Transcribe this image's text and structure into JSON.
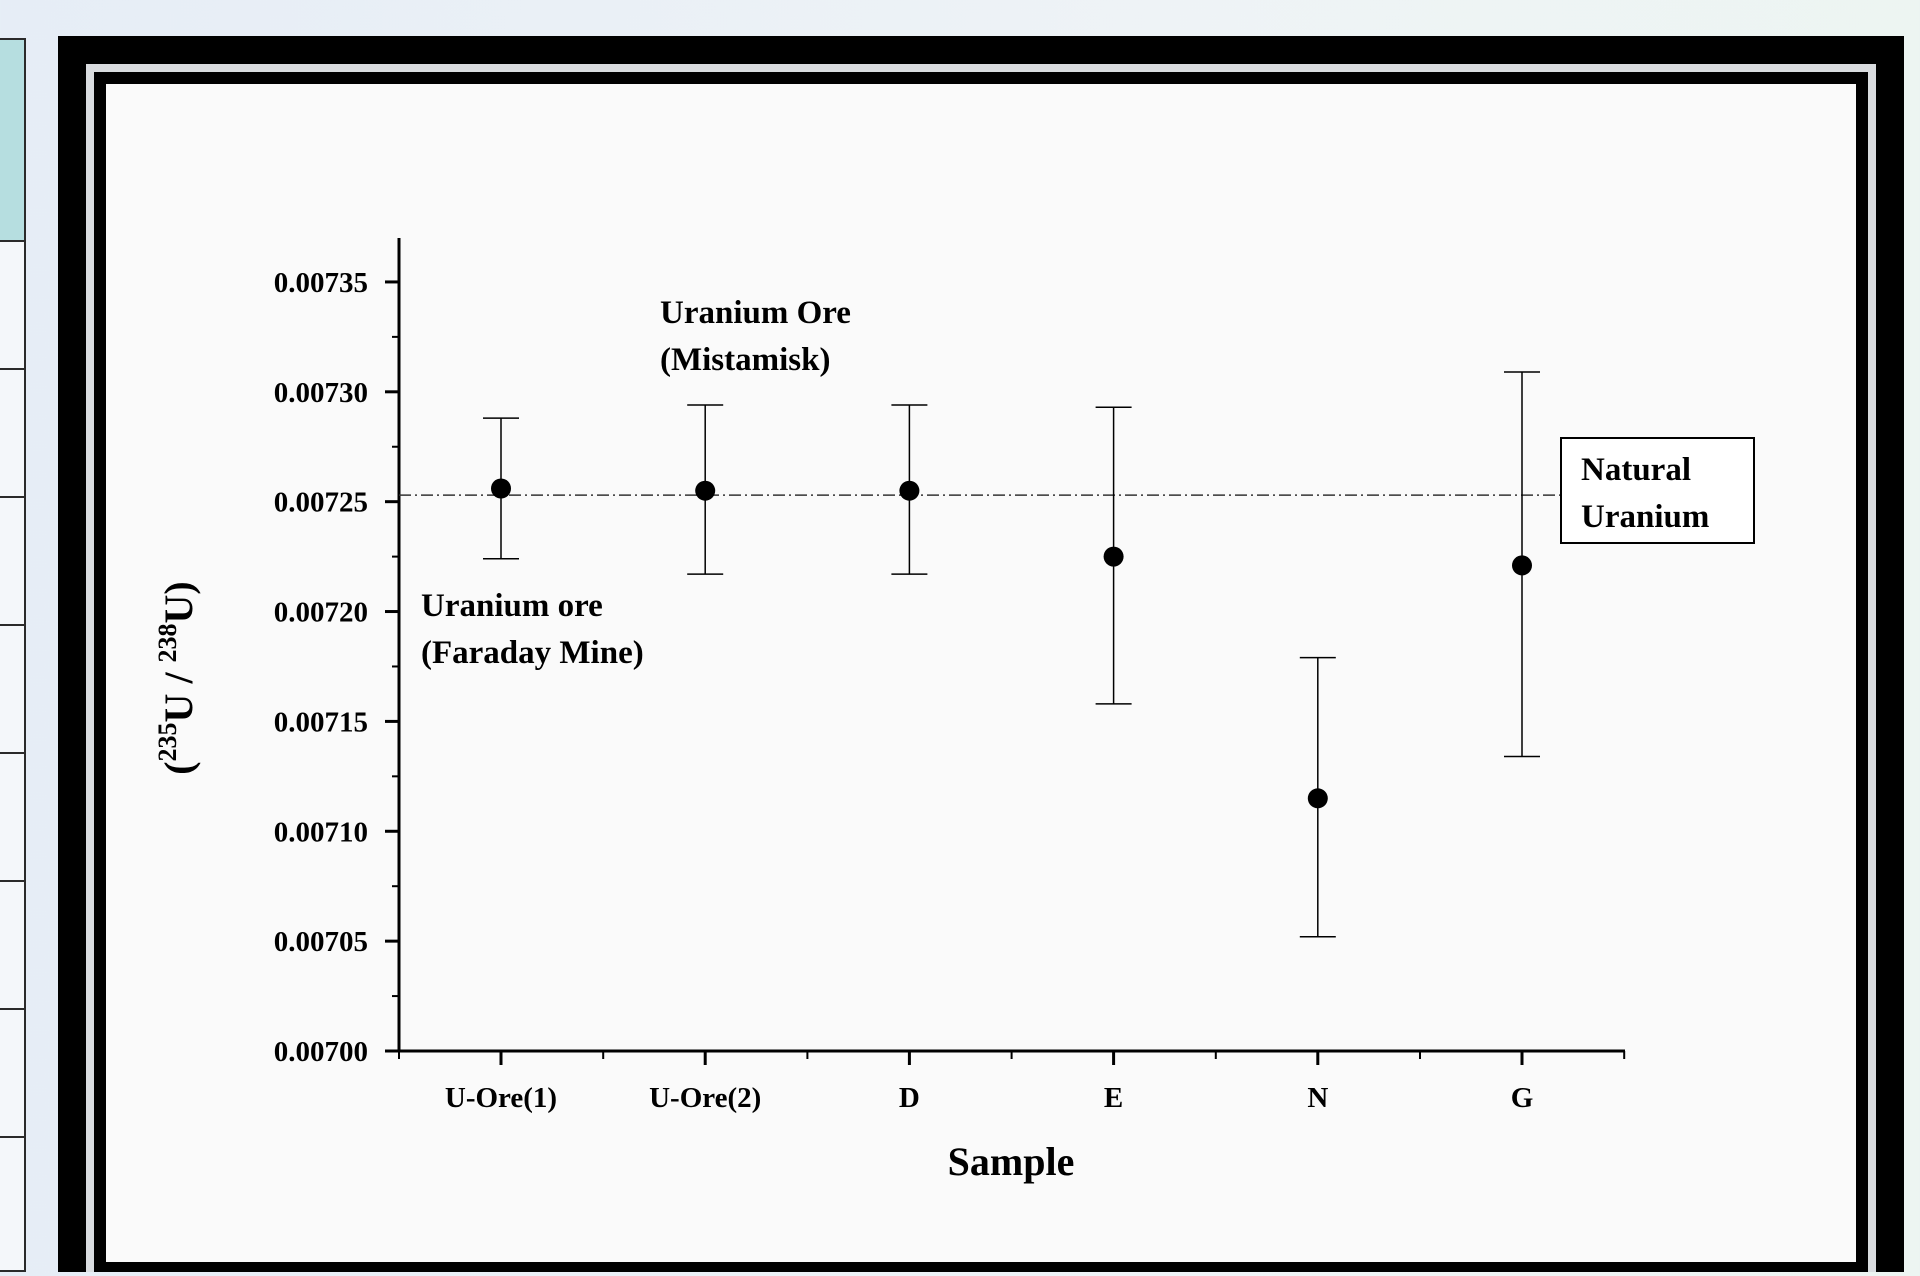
{
  "chart_data": {
    "type": "scatter",
    "title": "",
    "xlabel": "Sample",
    "ylabel_parts": {
      "open": "(",
      "sup1": "235",
      "mid": "U / ",
      "sup2": "238",
      "close": "U)"
    },
    "categories": [
      "U-Ore(1)",
      "U-Ore(2)",
      "D",
      "E",
      "N",
      "G"
    ],
    "values": [
      0.007256,
      0.007255,
      0.007255,
      0.007225,
      0.007115,
      0.007221
    ],
    "error_low": [
      0.007224,
      0.007217,
      0.007217,
      0.007158,
      0.007052,
      0.007134
    ],
    "error_high": [
      0.007288,
      0.007294,
      0.007294,
      0.007293,
      0.007179,
      0.007309
    ],
    "reference_line": {
      "value": 0.007253,
      "style": "dash-dot"
    },
    "ylim": [
      0.007,
      0.00737
    ],
    "yticks": [
      "0.00700",
      "0.00705",
      "0.00710",
      "0.00715",
      "0.00720",
      "0.00725",
      "0.00730",
      "0.00735"
    ],
    "annotations": [
      {
        "lines": [
          "Uranium Ore",
          "(Mistamisk)"
        ]
      },
      {
        "lines": [
          "Uranium ore",
          "(Faraday Mine)"
        ]
      }
    ],
    "legend_box": {
      "lines": [
        "Natural",
        "Uranium"
      ]
    },
    "grid": false
  }
}
